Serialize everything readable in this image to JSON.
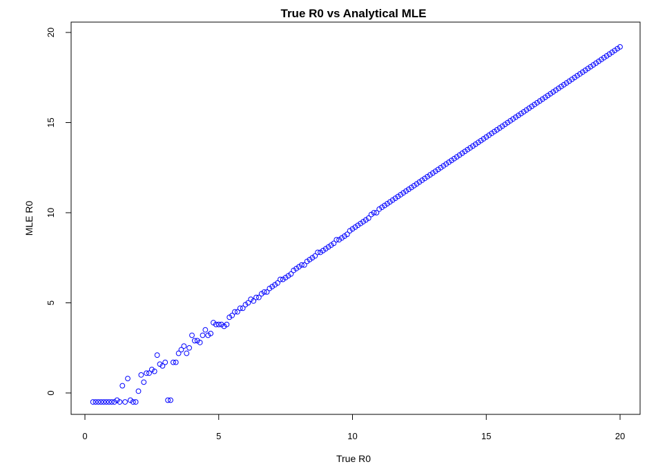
{
  "chart_data": {
    "type": "scatter",
    "title": "True R0 vs Analytical MLE",
    "xlabel": "True R0",
    "ylabel": "MLE R0",
    "xlim": [
      0,
      20
    ],
    "ylim": [
      -0.8,
      20.8
    ],
    "x_ticks": [
      0,
      5,
      10,
      15,
      20
    ],
    "y_ticks": [
      0,
      5,
      10,
      15,
      20
    ],
    "grid": false,
    "legend": "none",
    "marker": "open-circle",
    "point_color": "#0000ff",
    "series": [
      {
        "values_note": "",
        "points": [
          [
            0.3,
            -0.5
          ],
          [
            0.4,
            -0.5
          ],
          [
            0.5,
            -0.5
          ],
          [
            0.6,
            -0.5
          ],
          [
            0.7,
            -0.5
          ],
          [
            0.8,
            -0.5
          ],
          [
            0.9,
            -0.5
          ],
          [
            1.0,
            -0.5
          ],
          [
            1.1,
            -0.5
          ],
          [
            1.2,
            -0.4
          ],
          [
            1.3,
            -0.5
          ],
          [
            1.4,
            0.4
          ],
          [
            1.5,
            -0.5
          ],
          [
            1.6,
            0.8
          ],
          [
            1.7,
            -0.4
          ],
          [
            1.8,
            -0.5
          ],
          [
            1.9,
            -0.5
          ],
          [
            2.0,
            0.1
          ],
          [
            2.1,
            1.0
          ],
          [
            2.2,
            0.6
          ],
          [
            2.3,
            1.1
          ],
          [
            2.4,
            1.1
          ],
          [
            2.5,
            1.3
          ],
          [
            2.6,
            1.2
          ],
          [
            2.7,
            2.1
          ],
          [
            2.8,
            1.6
          ],
          [
            2.9,
            1.5
          ],
          [
            3.0,
            1.7
          ],
          [
            3.1,
            -0.4
          ],
          [
            3.2,
            -0.4
          ],
          [
            3.3,
            1.7
          ],
          [
            3.4,
            1.7
          ],
          [
            3.5,
            2.2
          ],
          [
            3.6,
            2.4
          ],
          [
            3.7,
            2.6
          ],
          [
            3.8,
            2.2
          ],
          [
            3.9,
            2.5
          ],
          [
            4.0,
            3.2
          ],
          [
            4.1,
            2.9
          ],
          [
            4.2,
            2.9
          ],
          [
            4.3,
            2.8
          ],
          [
            4.4,
            3.2
          ],
          [
            4.5,
            3.5
          ],
          [
            4.6,
            3.2
          ],
          [
            4.7,
            3.3
          ],
          [
            4.8,
            3.9
          ],
          [
            4.9,
            3.8
          ],
          [
            5.0,
            3.8
          ],
          [
            5.1,
            3.8
          ],
          [
            5.2,
            3.7
          ],
          [
            5.3,
            3.8
          ],
          [
            5.4,
            4.2
          ],
          [
            5.5,
            4.3
          ],
          [
            5.6,
            4.5
          ],
          [
            5.7,
            4.5
          ],
          [
            5.8,
            4.7
          ],
          [
            5.9,
            4.7
          ],
          [
            6.0,
            4.9
          ],
          [
            6.1,
            5.0
          ],
          [
            6.2,
            5.2
          ],
          [
            6.3,
            5.1
          ],
          [
            6.4,
            5.3
          ],
          [
            6.5,
            5.3
          ],
          [
            6.6,
            5.5
          ],
          [
            6.7,
            5.6
          ],
          [
            6.8,
            5.6
          ],
          [
            6.9,
            5.8
          ],
          [
            7.0,
            5.9
          ],
          [
            7.1,
            6.0
          ],
          [
            7.2,
            6.1
          ],
          [
            7.3,
            6.3
          ],
          [
            7.4,
            6.3
          ],
          [
            7.5,
            6.4
          ],
          [
            7.6,
            6.5
          ],
          [
            7.7,
            6.6
          ],
          [
            7.8,
            6.8
          ],
          [
            7.9,
            6.9
          ],
          [
            8.0,
            7.0
          ],
          [
            8.1,
            7.1
          ],
          [
            8.2,
            7.1
          ],
          [
            8.3,
            7.3
          ],
          [
            8.4,
            7.4
          ],
          [
            8.5,
            7.5
          ],
          [
            8.6,
            7.6
          ],
          [
            8.7,
            7.8
          ],
          [
            8.8,
            7.8
          ],
          [
            8.9,
            7.9
          ],
          [
            9.0,
            8.0
          ],
          [
            9.1,
            8.1
          ],
          [
            9.2,
            8.2
          ],
          [
            9.3,
            8.3
          ],
          [
            9.4,
            8.5
          ],
          [
            9.5,
            8.5
          ],
          [
            9.6,
            8.6
          ],
          [
            9.7,
            8.7
          ],
          [
            9.8,
            8.8
          ],
          [
            9.9,
            9.0
          ],
          [
            10.0,
            9.1
          ],
          [
            10.1,
            9.2
          ],
          [
            10.2,
            9.3
          ],
          [
            10.3,
            9.4
          ],
          [
            10.4,
            9.5
          ],
          [
            10.5,
            9.6
          ],
          [
            10.6,
            9.7
          ],
          [
            10.7,
            9.9
          ],
          [
            10.8,
            10.0
          ],
          [
            10.9,
            10.0
          ],
          [
            11.0,
            10.2
          ],
          [
            11.1,
            10.3
          ],
          [
            11.2,
            10.4
          ],
          [
            11.3,
            10.5
          ],
          [
            11.4,
            10.6
          ],
          [
            11.5,
            10.7
          ],
          [
            11.6,
            10.8
          ],
          [
            11.7,
            10.9
          ],
          [
            11.8,
            11.0
          ],
          [
            11.9,
            11.1
          ],
          [
            12.0,
            11.2
          ],
          [
            12.1,
            11.3
          ],
          [
            12.2,
            11.4
          ],
          [
            12.3,
            11.5
          ],
          [
            12.4,
            11.6
          ],
          [
            12.5,
            11.7
          ],
          [
            12.6,
            11.8
          ],
          [
            12.7,
            11.9
          ],
          [
            12.8,
            12.0
          ],
          [
            12.9,
            12.1
          ],
          [
            13.0,
            12.2
          ],
          [
            13.1,
            12.3
          ],
          [
            13.2,
            12.4
          ],
          [
            13.3,
            12.5
          ],
          [
            13.4,
            12.6
          ],
          [
            13.5,
            12.7
          ],
          [
            13.6,
            12.8
          ],
          [
            13.7,
            12.9
          ],
          [
            13.8,
            13.0
          ],
          [
            13.9,
            13.1
          ],
          [
            14.0,
            13.2
          ],
          [
            14.1,
            13.3
          ],
          [
            14.2,
            13.4
          ],
          [
            14.3,
            13.5
          ],
          [
            14.4,
            13.6
          ],
          [
            14.5,
            13.7
          ],
          [
            14.6,
            13.8
          ],
          [
            14.7,
            13.9
          ],
          [
            14.8,
            14.0
          ],
          [
            14.9,
            14.1
          ],
          [
            15.0,
            14.2
          ],
          [
            15.1,
            14.3
          ],
          [
            15.2,
            14.4
          ],
          [
            15.3,
            14.5
          ],
          [
            15.4,
            14.6
          ],
          [
            15.5,
            14.7
          ],
          [
            15.6,
            14.8
          ],
          [
            15.7,
            14.9
          ],
          [
            15.8,
            15.0
          ],
          [
            15.9,
            15.1
          ],
          [
            16.0,
            15.2
          ],
          [
            16.1,
            15.3
          ],
          [
            16.2,
            15.4
          ],
          [
            16.3,
            15.5
          ],
          [
            16.4,
            15.6
          ],
          [
            16.5,
            15.7
          ],
          [
            16.6,
            15.8
          ],
          [
            16.7,
            15.9
          ],
          [
            16.8,
            16.0
          ],
          [
            16.9,
            16.1
          ],
          [
            17.0,
            16.2
          ],
          [
            17.1,
            16.3
          ],
          [
            17.2,
            16.4
          ],
          [
            17.3,
            16.5
          ],
          [
            17.4,
            16.6
          ],
          [
            17.5,
            16.7
          ],
          [
            17.6,
            16.8
          ],
          [
            17.7,
            16.9
          ],
          [
            17.8,
            17.0
          ],
          [
            17.9,
            17.1
          ],
          [
            18.0,
            17.2
          ],
          [
            18.1,
            17.3
          ],
          [
            18.2,
            17.4
          ],
          [
            18.3,
            17.5
          ],
          [
            18.4,
            17.6
          ],
          [
            18.5,
            17.7
          ],
          [
            18.6,
            17.8
          ],
          [
            18.7,
            17.9
          ],
          [
            18.8,
            18.0
          ],
          [
            18.9,
            18.1
          ],
          [
            19.0,
            18.2
          ],
          [
            19.1,
            18.3
          ],
          [
            19.2,
            18.4
          ],
          [
            19.3,
            18.5
          ],
          [
            19.4,
            18.6
          ],
          [
            19.5,
            18.7
          ],
          [
            19.6,
            18.8
          ],
          [
            19.7,
            18.9
          ],
          [
            19.8,
            19.0
          ],
          [
            19.9,
            19.1
          ],
          [
            20.0,
            19.2
          ]
        ]
      }
    ]
  }
}
